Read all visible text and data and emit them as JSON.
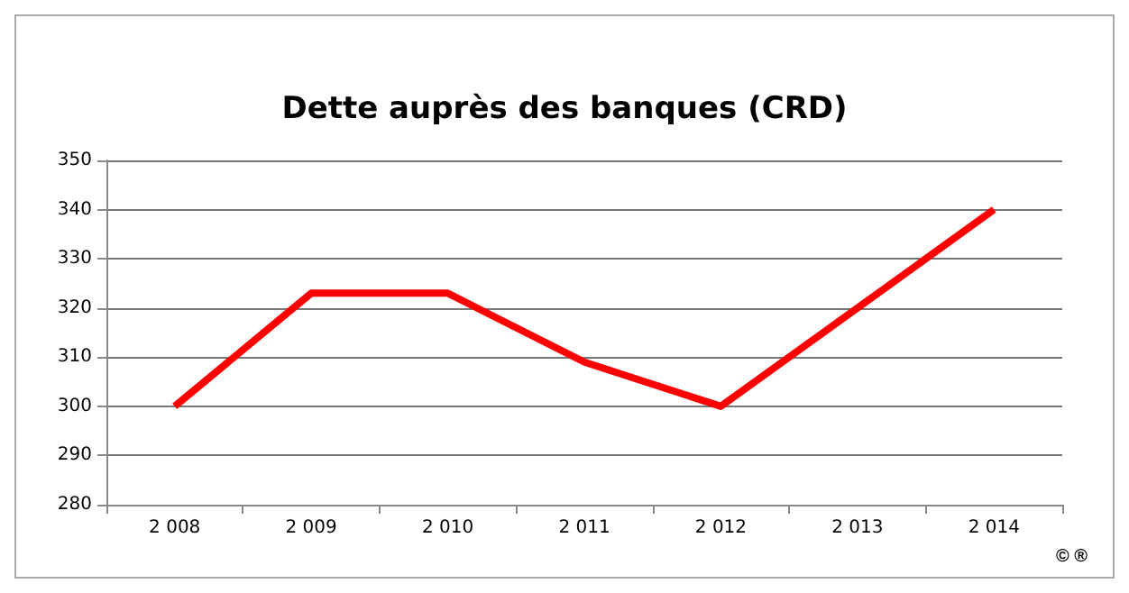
{
  "chart_data": {
    "type": "line",
    "title": "Dette auprès des banques (CRD)",
    "categories": [
      "2 008",
      "2 009",
      "2 010",
      "2 011",
      "2 012",
      "2 013",
      "2 014"
    ],
    "series": [
      {
        "color": "#ff0000",
        "values": [
          300,
          323,
          323,
          309,
          300,
          320,
          340
        ]
      }
    ],
    "ylim": [
      280,
      350
    ],
    "yticks": [
      280,
      290,
      300,
      310,
      320,
      330,
      340,
      350
    ],
    "grid": "y",
    "marker": "none",
    "line_style": "solid",
    "annotations": [
      "© ®"
    ]
  }
}
